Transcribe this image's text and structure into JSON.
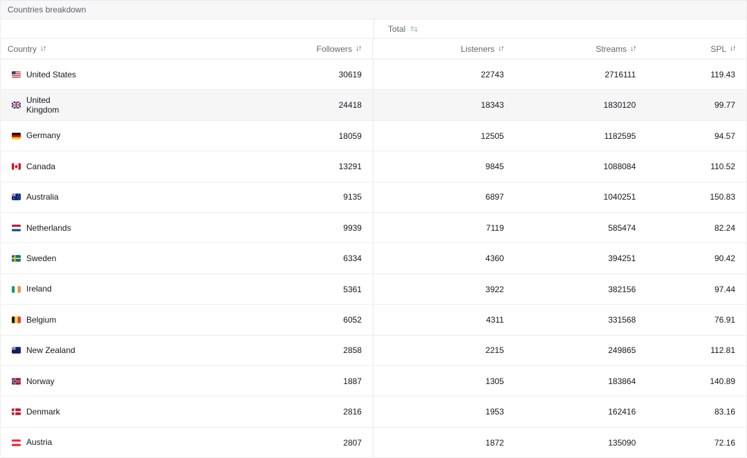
{
  "panel": {
    "title": "Countries breakdown"
  },
  "icons": {
    "sort_glyph": "↓↑",
    "swap_glyph": "⇆"
  },
  "table": {
    "group_header": {
      "label": "Total"
    },
    "columns": {
      "country": "Country",
      "followers": "Followers",
      "listeners": "Listeners",
      "streams": "Streams",
      "spl": "SPL"
    },
    "rows": [
      {
        "country": "United States",
        "code": "us",
        "followers": "30619",
        "listeners": "22743",
        "streams": "2716111",
        "spl": "119.43",
        "wrapped": false,
        "highlighted": false
      },
      {
        "country": "United Kingdom",
        "code": "gb",
        "followers": "24418",
        "listeners": "18343",
        "streams": "1830120",
        "spl": "99.77",
        "wrapped": true,
        "highlighted": true
      },
      {
        "country": "Germany",
        "code": "de",
        "followers": "18059",
        "listeners": "12505",
        "streams": "1182595",
        "spl": "94.57",
        "wrapped": false,
        "highlighted": false
      },
      {
        "country": "Canada",
        "code": "ca",
        "followers": "13291",
        "listeners": "9845",
        "streams": "1088084",
        "spl": "110.52",
        "wrapped": false,
        "highlighted": false
      },
      {
        "country": "Australia",
        "code": "au",
        "followers": "9135",
        "listeners": "6897",
        "streams": "1040251",
        "spl": "150.83",
        "wrapped": false,
        "highlighted": false
      },
      {
        "country": "Netherlands",
        "code": "nl",
        "followers": "9939",
        "listeners": "7119",
        "streams": "585474",
        "spl": "82.24",
        "wrapped": false,
        "highlighted": false
      },
      {
        "country": "Sweden",
        "code": "se",
        "followers": "6334",
        "listeners": "4360",
        "streams": "394251",
        "spl": "90.42",
        "wrapped": false,
        "highlighted": false
      },
      {
        "country": "Ireland",
        "code": "ie",
        "followers": "5361",
        "listeners": "3922",
        "streams": "382156",
        "spl": "97.44",
        "wrapped": false,
        "highlighted": false
      },
      {
        "country": "Belgium",
        "code": "be",
        "followers": "6052",
        "listeners": "4311",
        "streams": "331568",
        "spl": "76.91",
        "wrapped": false,
        "highlighted": false
      },
      {
        "country": "New Zealand",
        "code": "nz",
        "followers": "2858",
        "listeners": "2215",
        "streams": "249865",
        "spl": "112.81",
        "wrapped": false,
        "highlighted": false
      },
      {
        "country": "Norway",
        "code": "no",
        "followers": "1887",
        "listeners": "1305",
        "streams": "183864",
        "spl": "140.89",
        "wrapped": false,
        "highlighted": false
      },
      {
        "country": "Denmark",
        "code": "dk",
        "followers": "2816",
        "listeners": "1953",
        "streams": "162416",
        "spl": "83.16",
        "wrapped": false,
        "highlighted": false
      },
      {
        "country": "Austria",
        "code": "at",
        "followers": "2807",
        "listeners": "1872",
        "streams": "135090",
        "spl": "72.16",
        "wrapped": false,
        "highlighted": false
      }
    ],
    "colors": {
      "title_bar_bg": "#f7f7f8",
      "border": "#e9e9ec",
      "row_border": "#ededf0",
      "header_text": "#63676d",
      "data_text": "#17181b",
      "highlight_row_bg": "#f6f6f7"
    }
  }
}
